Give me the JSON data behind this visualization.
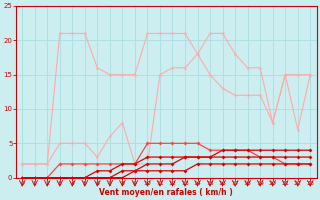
{
  "x": [
    0,
    1,
    2,
    3,
    4,
    5,
    6,
    7,
    8,
    9,
    10,
    11,
    12,
    13,
    14,
    15,
    16,
    17,
    18,
    19,
    20,
    21,
    22,
    23
  ],
  "line_pink_top": [
    2,
    2,
    2,
    21,
    21,
    21,
    16,
    15,
    15,
    15,
    21,
    21,
    21,
    21,
    18,
    21,
    21,
    18,
    16,
    16,
    8,
    15,
    15,
    15
  ],
  "line_pink_bot": [
    2,
    2,
    2,
    5,
    5,
    5,
    3,
    6,
    8,
    2,
    2,
    15,
    16,
    16,
    18,
    15,
    13,
    12,
    12,
    12,
    8,
    15,
    7,
    15
  ],
  "line_red1": [
    0,
    0,
    0,
    2,
    2,
    2,
    2,
    2,
    2,
    2,
    5,
    5,
    5,
    5,
    5,
    4,
    4,
    4,
    4,
    3,
    3,
    2,
    2,
    2
  ],
  "line_red2": [
    0,
    0,
    0,
    0,
    0,
    0,
    1,
    1,
    2,
    2,
    3,
    3,
    3,
    3,
    3,
    3,
    3,
    3,
    3,
    3,
    3,
    3,
    3,
    3
  ],
  "line_red3": [
    0,
    0,
    0,
    0,
    0,
    0,
    0,
    0,
    0,
    1,
    1,
    1,
    1,
    1,
    2,
    2,
    2,
    2,
    2,
    2,
    2,
    2,
    2,
    2
  ],
  "line_red4": [
    0,
    0,
    0,
    0,
    0,
    0,
    0,
    0,
    1,
    1,
    2,
    2,
    2,
    3,
    3,
    3,
    4,
    4,
    4,
    4,
    4,
    4,
    4,
    4
  ],
  "bg_color": "#cceef0",
  "grid_color": "#aadddf",
  "pink_color": "#ffaaaa",
  "red_color1": "#ff4444",
  "red_color2": "#dd0000",
  "axis_color": "#cc0000",
  "tick_color": "#cc0000",
  "xlabel": "Vent moyen/en rafales ( km/h )",
  "xlim": [
    -0.5,
    23.5
  ],
  "ylim": [
    0,
    25
  ],
  "yticks": [
    0,
    5,
    10,
    15,
    20,
    25
  ],
  "xticks": [
    0,
    1,
    2,
    3,
    4,
    5,
    6,
    7,
    8,
    9,
    10,
    11,
    12,
    13,
    14,
    15,
    16,
    17,
    18,
    19,
    20,
    21,
    22,
    23
  ]
}
